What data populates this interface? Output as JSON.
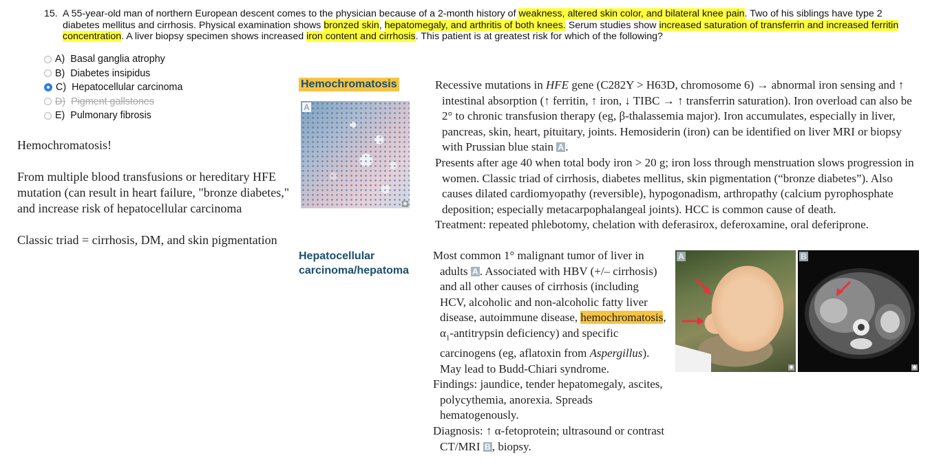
{
  "question": {
    "number": "15.",
    "segments": [
      {
        "text": "A 55-year-old man of northern European descent comes to the physician because of a 2-month history of ",
        "highlight": false
      },
      {
        "text": "weakness, altered skin color, and bilateral knee pain",
        "highlight": true
      },
      {
        "text": ". Two of his siblings have type 2 diabetes mellitus and cirrhosis. Physical examination shows ",
        "highlight": false
      },
      {
        "text": "bronzed skin",
        "highlight": true
      },
      {
        "text": ", ",
        "highlight": false
      },
      {
        "text": "hepatomegaly, and arthritis of both knees.",
        "highlight": true
      },
      {
        "text": " Serum studies show ",
        "highlight": false
      },
      {
        "text": "increased saturation of transferrin and increased ferritin concentration",
        "highlight": true
      },
      {
        "text": ". A liver biopsy specimen shows increased ",
        "highlight": false
      },
      {
        "text": "iron content and cirrhosis",
        "highlight": true
      },
      {
        "text": ". This patient is at greatest risk for which of the following?",
        "highlight": false
      }
    ]
  },
  "options": [
    {
      "letter": "A)",
      "text": "Basal ganglia atrophy",
      "selected": false,
      "struck": false
    },
    {
      "letter": "B)",
      "text": "Diabetes insipidus",
      "selected": false,
      "struck": false
    },
    {
      "letter": "C)",
      "text": "Hepatocellular carcinoma",
      "selected": true,
      "struck": false
    },
    {
      "letter": "D)",
      "text": "Pigment gallstones",
      "selected": false,
      "struck": true
    },
    {
      "letter": "E)",
      "text": "Pulmonary fibrosis",
      "selected": false,
      "struck": false
    }
  ],
  "notes": {
    "exclaim": "Hemochromatosis!",
    "body": "From multiple blood transfusions or hereditary HFE mutation (can result in heart failure, \"bronze diabetes,\" and increase risk of hepatocellular carcinoma",
    "triad": "Classic triad = cirrhosis, DM, and skin pigmentation"
  },
  "hemochromatosis": {
    "heading": "Hemochromatosis",
    "image_label": "A"
  },
  "hcc": {
    "heading_line1": "Hepatocellular",
    "heading_line2": "carcinoma/hepatoma",
    "image_a_label": "A",
    "image_b_label": "B"
  },
  "colors": {
    "highlight_yellow": "#ffff3b",
    "highlight_orange": "#f6c443",
    "heading_blue": "#1a4e6e",
    "selected_radio": "#2f7de1",
    "arrow_red": "#e8323c"
  }
}
